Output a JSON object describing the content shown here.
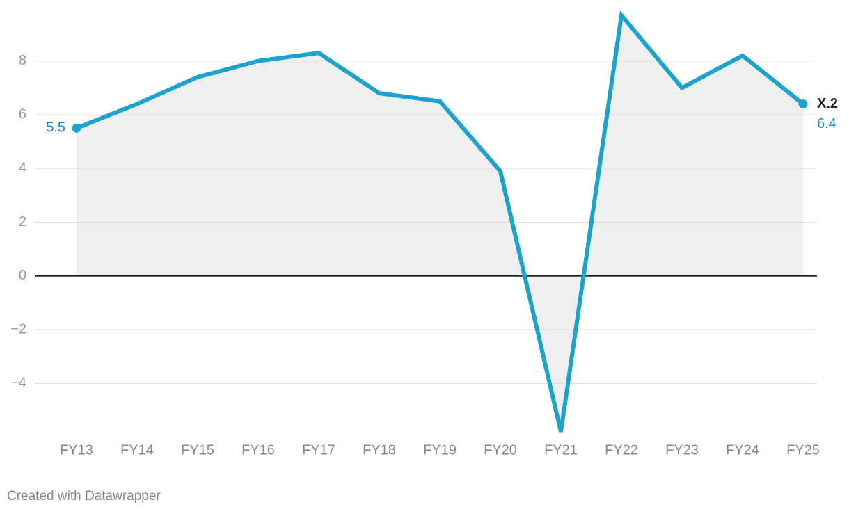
{
  "chart_data": {
    "type": "line",
    "categories": [
      "FY13",
      "FY14",
      "FY15",
      "FY16",
      "FY17",
      "FY18",
      "FY19",
      "FY20",
      "FY21",
      "FY22",
      "FY23",
      "FY24",
      "FY25"
    ],
    "series": [
      {
        "name": "X.2",
        "color": "#1ba3cf",
        "values": [
          5.5,
          6.4,
          7.4,
          8.0,
          8.3,
          6.8,
          6.5,
          3.9,
          -5.8,
          9.7,
          7.0,
          8.2,
          6.4
        ]
      }
    ],
    "ylim": [
      -5.8,
      9.7
    ],
    "yticks": [
      {
        "value": -4,
        "label": "−4"
      },
      {
        "value": -2,
        "label": "−2"
      },
      0,
      2,
      4,
      6,
      8
    ],
    "grid": true,
    "area_color": "#efefef",
    "credit": "Created with Datawrapper"
  }
}
